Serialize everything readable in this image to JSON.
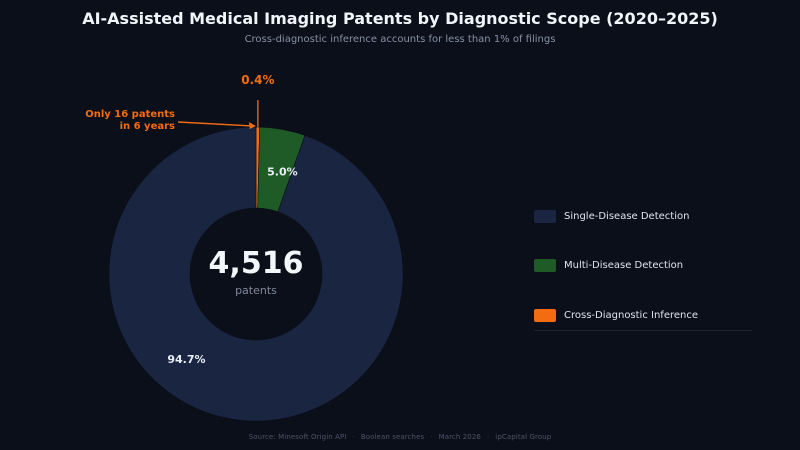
{
  "chart_data": {
    "type": "pie",
    "title": "AI-Assisted Medical Imaging Patents by Diagnostic Scope (2020–2025)",
    "subtitle": "Cross-diagnostic inference accounts for less than 1% of filings",
    "center_value": "4,516",
    "center_label": "patents",
    "segments": [
      {
        "name": "Cross-Diagnostic Inference",
        "percent": 0.4,
        "label": "0.4%",
        "color": "#f36c12"
      },
      {
        "name": "Multi-Disease Detection",
        "percent": 5.0,
        "label": "5.0%",
        "color": "#1f5b26"
      },
      {
        "name": "Single-Disease Detection",
        "percent": 94.7,
        "label": "94.7%",
        "color": "#1a2541"
      }
    ],
    "annotation": {
      "text_lines": [
        "Only 16 patents",
        "in 6 years"
      ],
      "target": "Cross-Diagnostic Inference",
      "color": "#f36c12"
    },
    "legend": {
      "position": "right",
      "items": [
        {
          "label": "Single-Disease Detection",
          "color": "#1a2541"
        },
        {
          "label": "Multi-Disease Detection",
          "color": "#1f5b26"
        },
        {
          "label": "Cross-Diagnostic Inference",
          "color": "#f36c12"
        }
      ]
    }
  },
  "footer": {
    "items": [
      "Source: Minesoft Origin API",
      "Boolean searches",
      "March 2026",
      "ipCapital Group"
    ]
  }
}
